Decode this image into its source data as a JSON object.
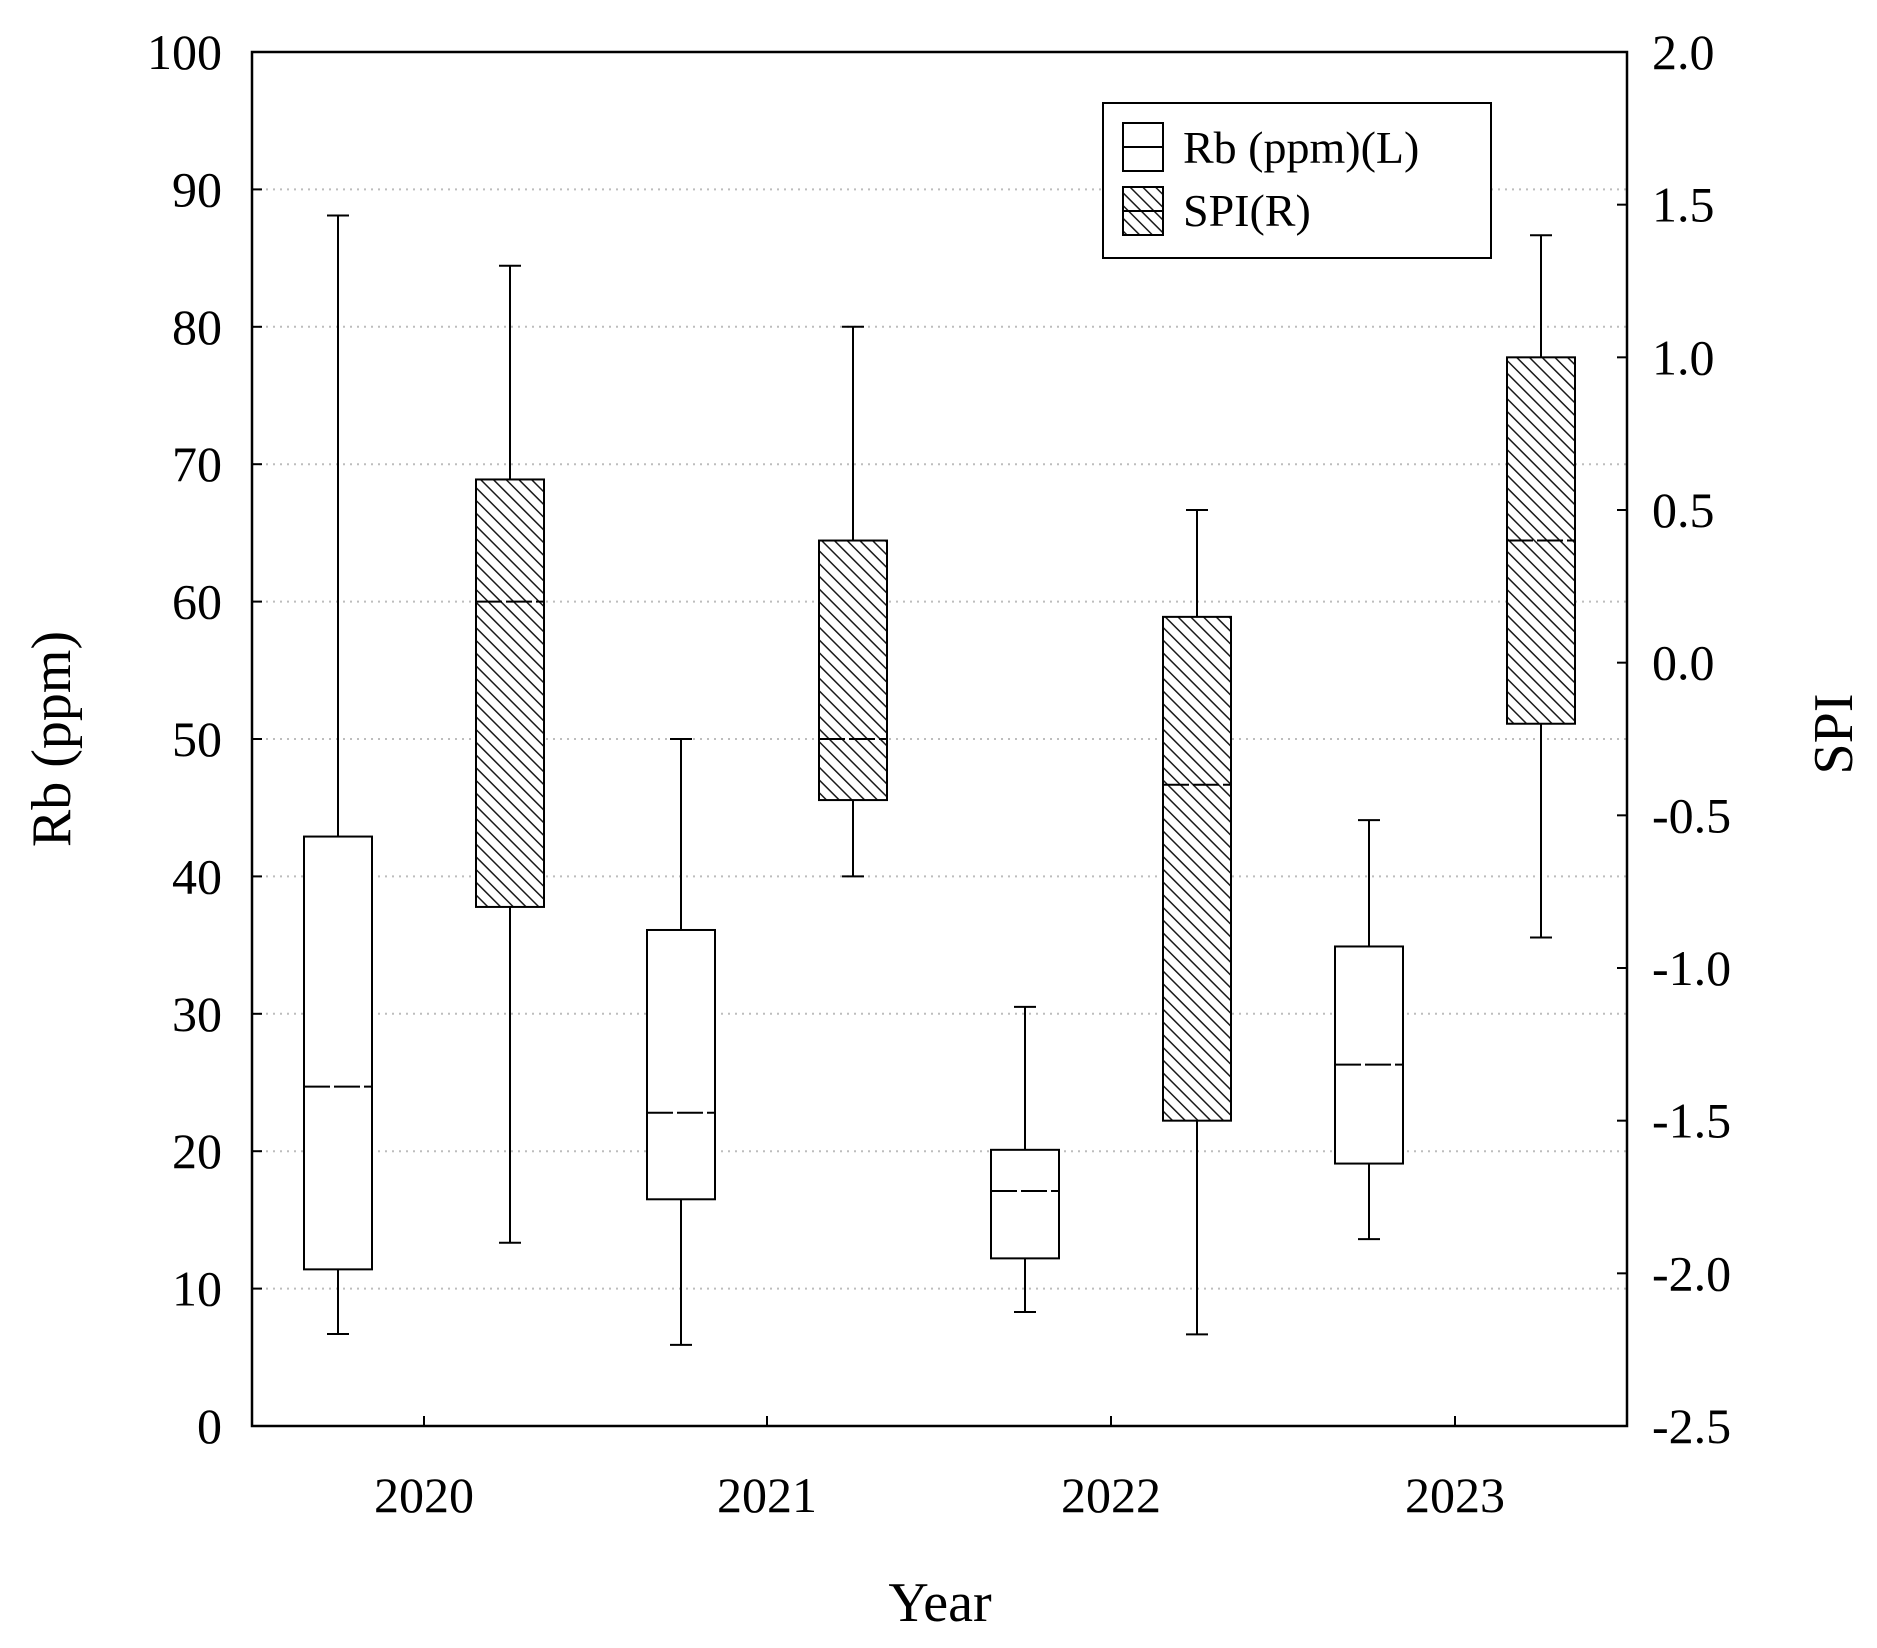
{
  "chart_data": {
    "type": "boxplot",
    "xlabel": "Year",
    "ylabel_left": "Rb (ppm)",
    "ylabel_right": "SPI",
    "categories": [
      "2020",
      "2021",
      "2022",
      "2023"
    ],
    "ylim_left": [
      0,
      100
    ],
    "yticks_left": [
      "0",
      "10",
      "20",
      "30",
      "40",
      "50",
      "60",
      "70",
      "80",
      "90",
      "100"
    ],
    "ylim_right": [
      -2.5,
      2.0
    ],
    "yticks_right": [
      "-2.5",
      "-2.0",
      "-1.5",
      "-1.0",
      "-0.5",
      "0.0",
      "0.5",
      "1.0",
      "1.5",
      "2.0"
    ],
    "grid": true,
    "legend_position": "top-right",
    "series": [
      {
        "name": "Rb (ppm)(L)",
        "axis": "left",
        "fill": "none",
        "boxes": [
          {
            "category": "2020",
            "min": 6.7,
            "q1": 11.4,
            "median": 24.7,
            "q3": 42.9,
            "max": 88.1
          },
          {
            "category": "2021",
            "min": 5.9,
            "q1": 16.5,
            "median": 22.8,
            "q3": 36.1,
            "max": 50.0
          },
          {
            "category": "2022",
            "min": 8.3,
            "q1": 12.2,
            "median": 17.1,
            "q3": 20.1,
            "max": 30.5
          },
          {
            "category": "2023",
            "min": 13.6,
            "q1": 19.1,
            "median": 26.3,
            "q3": 34.9,
            "max": 44.1
          }
        ]
      },
      {
        "name": "SPI(R)",
        "axis": "right",
        "fill": "hatched",
        "boxes": [
          {
            "category": "2020",
            "min": -1.9,
            "q1": -0.8,
            "median": 0.2,
            "q3": 0.6,
            "max": 1.3
          },
          {
            "category": "2021",
            "min": -0.7,
            "q1": -0.45,
            "median": -0.25,
            "q3": 0.4,
            "max": 1.1
          },
          {
            "category": "2022",
            "min": -2.2,
            "q1": -1.5,
            "median": -0.4,
            "q3": 0.15,
            "max": 0.5
          },
          {
            "category": "2023",
            "min": -0.9,
            "q1": -0.2,
            "median": 0.4,
            "q3": 1.0,
            "max": 1.4
          }
        ]
      }
    ]
  }
}
